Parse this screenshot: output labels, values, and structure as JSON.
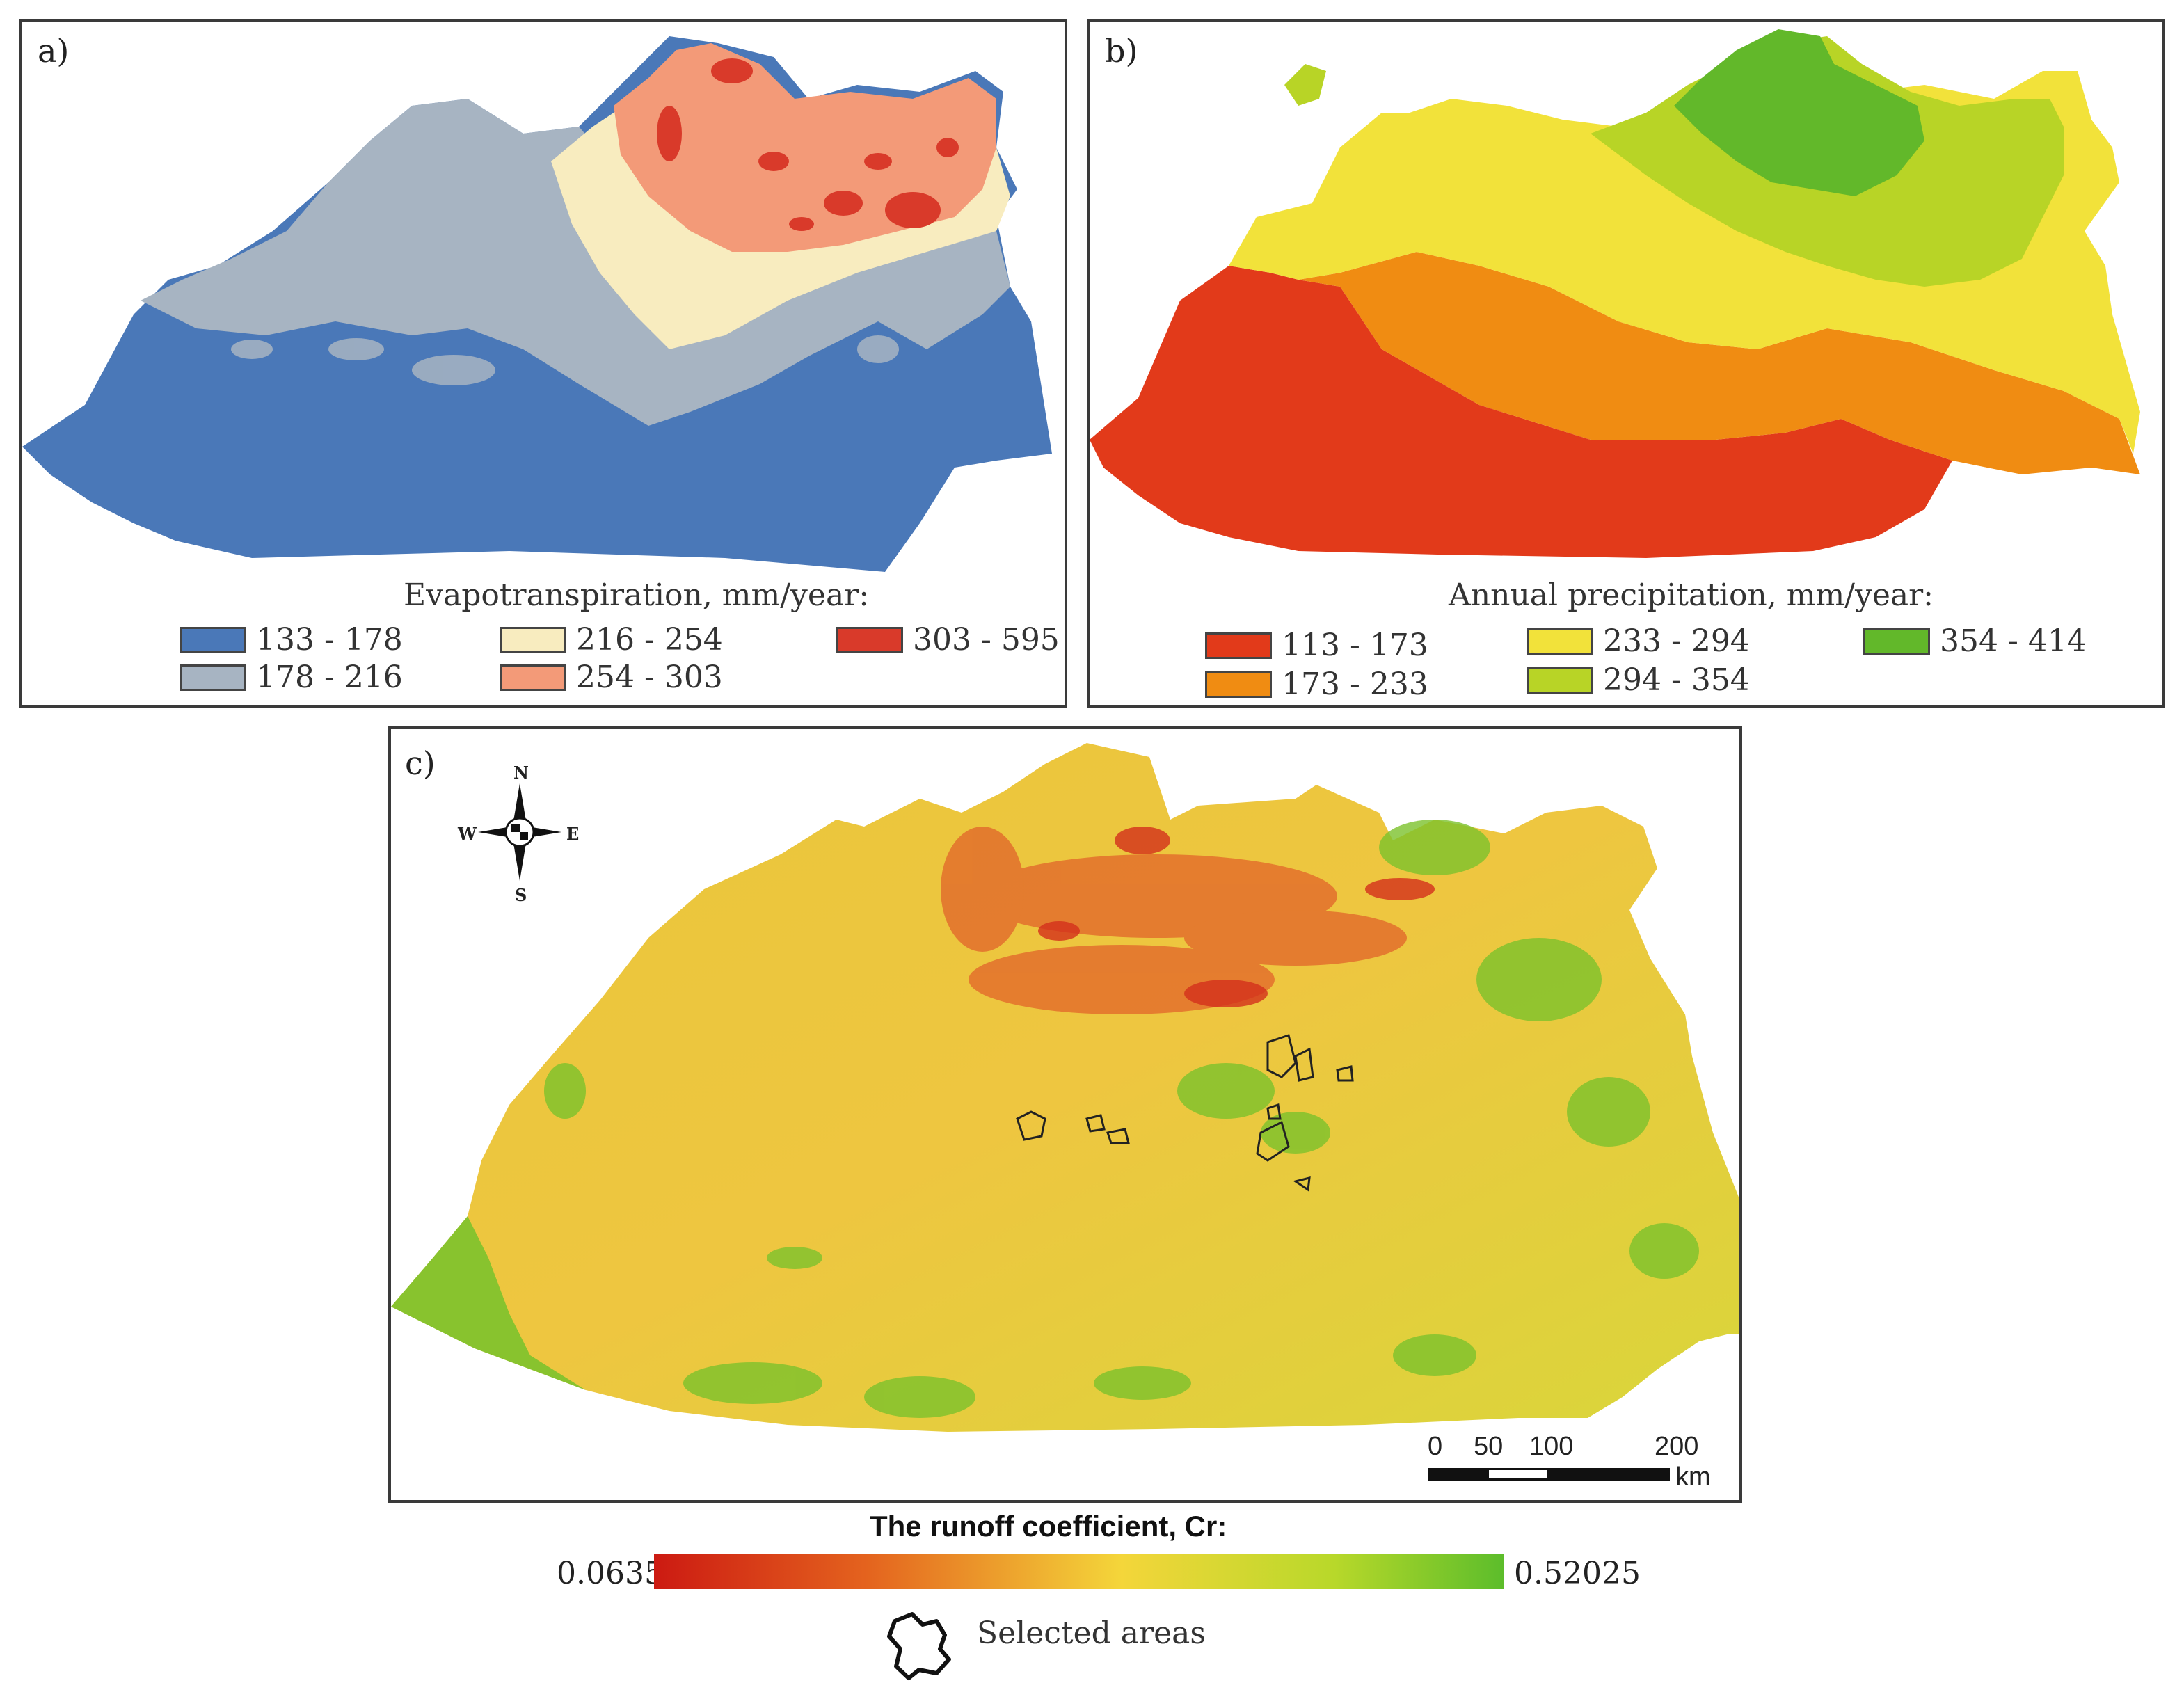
{
  "panel_a": {
    "label": "a)",
    "legend_title": "Evapotranspiration, mm/year:",
    "classes": [
      {
        "range": "133 - 178",
        "color": "#4a78b8"
      },
      {
        "range": "178 - 216",
        "color": "#a7b4c2"
      },
      {
        "range": "216 - 254",
        "color": "#f8ecbf"
      },
      {
        "range": "254 - 303",
        "color": "#f39a78"
      },
      {
        "range": "303 - 595",
        "color": "#d93a2a"
      }
    ]
  },
  "panel_b": {
    "label": "b)",
    "legend_title": "Annual precipitation, mm/year:",
    "classes": [
      {
        "range": "113 - 173",
        "color": "#e23a1a"
      },
      {
        "range": "173 - 233",
        "color": "#f08c12"
      },
      {
        "range": "233 - 294",
        "color": "#f2e23a"
      },
      {
        "range": "294 - 354",
        "color": "#b8d426"
      },
      {
        "range": "354 - 414",
        "color": "#62b82a"
      }
    ]
  },
  "panel_c": {
    "label": "c)",
    "compass": {
      "n": "N",
      "s": "S",
      "e": "E",
      "w": "W"
    },
    "scale_bar": {
      "ticks": [
        "0",
        "50",
        "100",
        "200"
      ],
      "unit": "km"
    }
  },
  "colorbar": {
    "title": "The runoff coefficient, Cr:",
    "min": "0.0635",
    "max": "0.52025",
    "colors": [
      "#cc1a12",
      "#f4d63a",
      "#5cbd2b"
    ]
  },
  "selected_areas_label": "Selected areas"
}
